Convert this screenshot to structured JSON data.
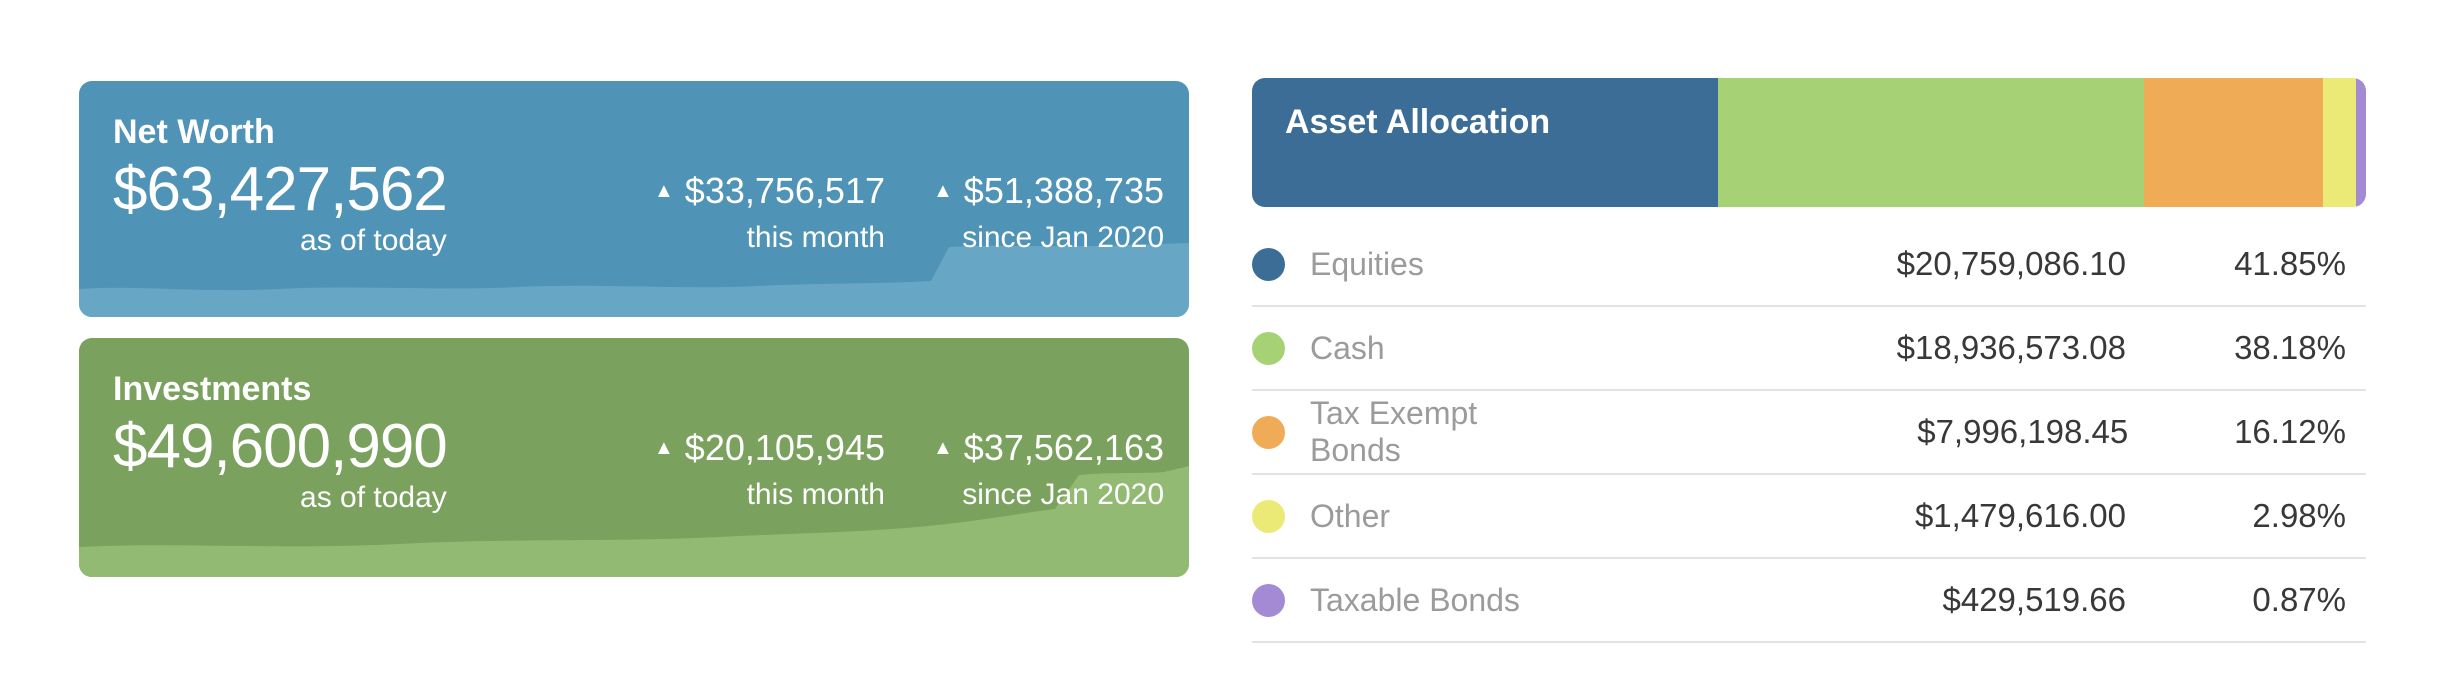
{
  "cards": [
    {
      "title": "Net Worth",
      "amount": "$63,427,562",
      "amount_caption": "as of today",
      "deltas": [
        {
          "icon": "up-triangle",
          "value": "$33,756,517",
          "label": "this month"
        },
        {
          "icon": "up-triangle",
          "value": "$51,388,735",
          "label": "since Jan 2020"
        }
      ],
      "colors": {
        "background": "#4F93B6",
        "sparkline": "#67A7C5",
        "text": "#FFFFFF"
      }
    },
    {
      "title": "Investments",
      "amount": "$49,600,990",
      "amount_caption": "as of today",
      "deltas": [
        {
          "icon": "up-triangle",
          "value": "$20,105,945",
          "label": "this month"
        },
        {
          "icon": "up-triangle",
          "value": "$37,562,163",
          "label": "since Jan 2020"
        }
      ],
      "colors": {
        "background": "#7AA15D",
        "sparkline": "#93BA72",
        "text": "#FFFFFF"
      }
    }
  ],
  "asset_allocation": {
    "title": "Asset Allocation",
    "rows": [
      {
        "label": "Equities",
        "value": "$20,759,086.10",
        "percent": "41.85%",
        "percent_num": 41.85,
        "color": "#3C6D96"
      },
      {
        "label": "Cash",
        "value": "$18,936,573.08",
        "percent": "38.18%",
        "percent_num": 38.18,
        "color": "#A6D275"
      },
      {
        "label": "Tax Exempt Bonds",
        "value": "$7,996,198.45",
        "percent": "16.12%",
        "percent_num": 16.12,
        "color": "#EFAB55"
      },
      {
        "label": "Other",
        "value": "$1,479,616.00",
        "percent": "2.98%",
        "percent_num": 2.98,
        "color": "#ECEA77"
      },
      {
        "label": "Taxable Bonds",
        "value": "$429,519.66",
        "percent": "0.87%",
        "percent_num": 0.87,
        "color": "#A489D4"
      }
    ]
  },
  "chart_data": [
    {
      "type": "bar",
      "subtype": "horizontal-stacked-single-row",
      "title": "Asset Allocation",
      "series": [
        {
          "name": "Equities",
          "value": 20759086.1,
          "percent": 41.85,
          "color": "#3C6D96"
        },
        {
          "name": "Cash",
          "value": 18936573.08,
          "percent": 38.18,
          "color": "#A6D275"
        },
        {
          "name": "Tax Exempt Bonds",
          "value": 7996198.45,
          "percent": 16.12,
          "color": "#EFAB55"
        },
        {
          "name": "Other",
          "value": 1479616.0,
          "percent": 2.98,
          "color": "#ECEA77"
        },
        {
          "name": "Taxable Bonds",
          "value": 429519.66,
          "percent": 0.87,
          "color": "#A489D4"
        }
      ],
      "legend_position": "table-below",
      "axes": "none"
    },
    {
      "type": "area",
      "title": "Net Worth sparkline (unlabeled)",
      "x": "time since Jan 2020 to today",
      "approx_normalized_heights": [
        0.12,
        0.12,
        0.13,
        0.12,
        0.13,
        0.12,
        0.13,
        0.15,
        0.3,
        0.3,
        0.31
      ],
      "note": "flat wavy band with a step up at ~78% of width; no axis labels shown"
    },
    {
      "type": "area",
      "title": "Investments sparkline (unlabeled)",
      "x": "time since Jan 2020 to today",
      "approx_normalized_heights": [
        0.12,
        0.13,
        0.14,
        0.16,
        0.18,
        0.2,
        0.25,
        0.28,
        0.43,
        0.44,
        0.46
      ],
      "note": "gently rising wavy band with a step up at ~88% of width; no axis labels shown"
    }
  ]
}
